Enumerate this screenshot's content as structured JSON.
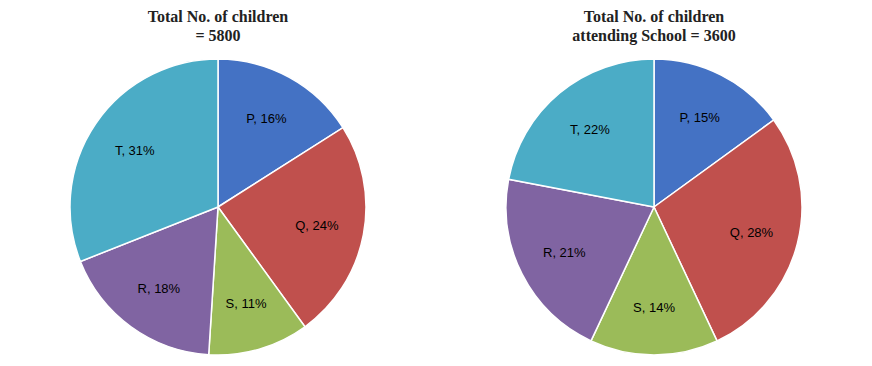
{
  "chart_data": [
    {
      "type": "pie",
      "title": "Total No. of children\n= 5800",
      "values": [
        16,
        24,
        11,
        18,
        31
      ],
      "value_labels": [
        "P, 16%",
        "Q, 24%",
        "S, 11%",
        "R, 18%",
        "T, 31%"
      ],
      "colors": [
        "#4472c4",
        "#c0504d",
        "#9bbb59",
        "#8064a2",
        "#4bacc6"
      ],
      "data_labels": true
    },
    {
      "type": "pie",
      "title": "Total No. of children\nattending School = 3600",
      "values": [
        15,
        28,
        14,
        21,
        22
      ],
      "value_labels": [
        "P, 15%",
        "Q, 28%",
        "S, 14%",
        "R, 21%",
        "T, 22%"
      ],
      "colors": [
        "#4472c4",
        "#c0504d",
        "#9bbb59",
        "#8064a2",
        "#4bacc6"
      ],
      "data_labels": true
    }
  ]
}
